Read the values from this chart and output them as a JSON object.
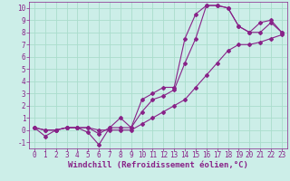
{
  "background_color": "#cceee8",
  "grid_color": "#aaddcc",
  "line_color": "#882288",
  "spine_color": "#882288",
  "xlim": [
    -0.5,
    23.5
  ],
  "ylim": [
    -1.5,
    10.5
  ],
  "xticks": [
    0,
    1,
    2,
    3,
    4,
    5,
    6,
    7,
    8,
    9,
    10,
    11,
    12,
    13,
    14,
    15,
    16,
    17,
    18,
    19,
    20,
    21,
    22,
    23
  ],
  "yticks": [
    -1,
    0,
    1,
    2,
    3,
    4,
    5,
    6,
    7,
    8,
    9,
    10
  ],
  "xlabel": "Windchill (Refroidissement éolien,°C)",
  "series": [
    [
      0.2,
      0.0,
      0.0,
      0.2,
      0.2,
      0.2,
      -0.3,
      0.2,
      1.0,
      0.2,
      2.5,
      3.0,
      3.5,
      3.5,
      7.5,
      9.5,
      10.2,
      10.2,
      10.0,
      8.5,
      8.0,
      8.0,
      8.8,
      8.0
    ],
    [
      0.2,
      -0.5,
      0.0,
      0.2,
      0.2,
      -0.2,
      -1.2,
      0.2,
      0.2,
      0.2,
      1.5,
      2.5,
      2.8,
      3.3,
      5.5,
      7.5,
      10.2,
      10.2,
      10.0,
      8.5,
      8.0,
      8.8,
      9.0,
      8.0
    ],
    [
      0.2,
      0.0,
      0.0,
      0.2,
      0.2,
      0.2,
      0.0,
      0.0,
      0.0,
      0.0,
      0.5,
      1.0,
      1.5,
      2.0,
      2.5,
      3.5,
      4.5,
      5.5,
      6.5,
      7.0,
      7.0,
      7.2,
      7.5,
      7.8
    ]
  ],
  "marker": "D",
  "markersize": 2,
  "linewidth": 0.8,
  "tick_fontsize": 5.5,
  "xlabel_fontsize": 6.5,
  "xlabel_fontweight": "bold"
}
